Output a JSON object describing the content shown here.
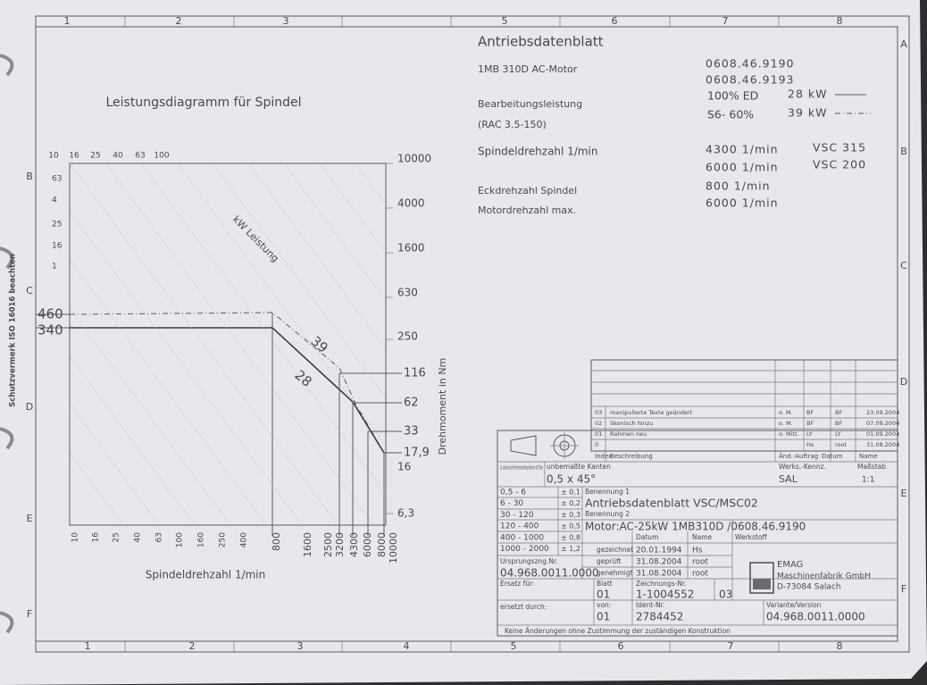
{
  "border": {
    "columns": [
      "1",
      "2",
      "3",
      "4",
      "5",
      "6",
      "7",
      "8"
    ],
    "rows": [
      "A",
      "B",
      "C",
      "D",
      "E",
      "F"
    ]
  },
  "side_note": "Schutzvermerk ISO 16016 beachten",
  "diagram": {
    "title": "Leistungsdiagramm für Spindel",
    "power_scale_top": [
      "10",
      "16",
      "25",
      "40",
      "63",
      "100"
    ],
    "power_scale_left": [
      "63",
      "4",
      "25",
      "16",
      "1"
    ],
    "power_label": "kW Leistung",
    "torque_ticks": [
      "10000",
      "4000",
      "1600",
      "630",
      "250",
      "116",
      "62",
      "33",
      "17,9",
      "16",
      "6,3"
    ],
    "torque_left": [
      "460",
      "340"
    ],
    "curve_labels": [
      "39",
      "28"
    ],
    "speed_ticks": [
      "10",
      "16",
      "25",
      "40",
      "63",
      "100",
      "160",
      "250",
      "400",
      "800",
      "1600",
      "2500",
      "3200",
      "4300",
      "6000",
      "8000",
      "10000"
    ],
    "x_label": "Spindeldrehzahl 1/min",
    "y_label": "Drehmoment in Nm"
  },
  "header": {
    "title": "Antriebsdatenblatt",
    "motor": "1MB 310D  AC-Motor",
    "part_numbers": [
      "0608.46.9190",
      "0608.46.9193"
    ],
    "power_label": "Bearbeitungsleistung",
    "power_note": "(RAC 3.5-150)",
    "power_rows": [
      [
        "100% ED",
        "28 kW"
      ],
      [
        "S6- 60%",
        "39 kW"
      ]
    ],
    "speed_label": "Spindeldrehzahl 1/min",
    "speed_rows": [
      [
        "4300 1/min",
        "VSC 315"
      ],
      [
        "6000 1/min",
        "VSC 200"
      ]
    ],
    "corner_speed_label": "Eckdrehzahl Spindel",
    "corner_speed": "800 1/min",
    "max_speed_label": "Motordrehzahl max.",
    "max_speed": "6000 1/min"
  },
  "title_block": {
    "revision_header": [
      "Index",
      "Beschreibung",
      "Änd.-Auftrag",
      "Datum",
      "Name"
    ],
    "revisions": [
      {
        "index": "03",
        "text": "manipulierte Texte geändert",
        "order": "o. M.",
        "by": "BF",
        "name": "BF",
        "date": "23.09.2004"
      },
      {
        "index": "02",
        "text": "Skonisch hinzu",
        "order": "o. M.",
        "by": "BF",
        "name": "BF",
        "date": "07.09.2004"
      },
      {
        "index": "01",
        "text": "Rahmen neu",
        "order": "o. Mitt.",
        "by": "LY",
        "name": "LY",
        "date": "01.09.2004"
      },
      {
        "index": "0",
        "by": "Hs",
        "name": "root",
        "date": "31.08.2004"
      }
    ],
    "tolerance_note": "Zul. Abweichung nicht tolerierter Bearbeitungsmaße nach DIN 7168-m",
    "edges_label": "unbemaßte Kanten",
    "edges": "0,5 x 45°",
    "plant_label": "Werks.-Kennz.",
    "plant": "SAL",
    "scale_label": "Maßstab",
    "scale": "1:1",
    "tolerances": [
      [
        "0,5 - 6",
        "± 0,1"
      ],
      [
        "6 - 30",
        "± 0,2"
      ],
      [
        "30 - 120",
        "± 0,3"
      ],
      [
        "120 - 400",
        "± 0,5"
      ],
      [
        "400 - 1000",
        "± 0,8"
      ],
      [
        "1000 - 2000",
        "± 1,2"
      ]
    ],
    "name1_label": "Benennung 1",
    "name1": "Antriebsdatenblatt VSC/MSC02",
    "name2_label": "Benennung 2",
    "name2": "Motor:AC-25kW  1MB310D  /0608.46.9190",
    "sign_header": [
      "Datum",
      "Name"
    ],
    "material_label": "Werkstoff",
    "signatures": [
      [
        "gezeichnet",
        "20.01.1994",
        "Hs"
      ],
      [
        "geprüft",
        "31.08.2004",
        "root"
      ],
      [
        "genehmigt",
        "31.08.2004",
        "root"
      ]
    ],
    "origin_label": "Ursprungszng.Nr.",
    "origin": "04.968.0011.0000",
    "company": [
      "EMAG",
      "Maschinenfabrik GmbH",
      "D-73084 Salach"
    ],
    "replaces_label": "Ersatz für:",
    "sheet_label": "Blatt",
    "sheet": "01",
    "drawing_no_label": "Zeichnungs-Nr.",
    "drawing_no": "1-1004552",
    "drawing_index": "03",
    "replaced_by_label": "ersetzt durch:",
    "of_label": "von:",
    "sheets": "01",
    "ident_label": "Ident-Nr.",
    "ident": "2784452",
    "variant_label": "Variante/Version",
    "variant": "04.968.0011.0000",
    "footer": "Keine Änderungen ohne Zustimmung der zuständigen Konstruktion"
  }
}
